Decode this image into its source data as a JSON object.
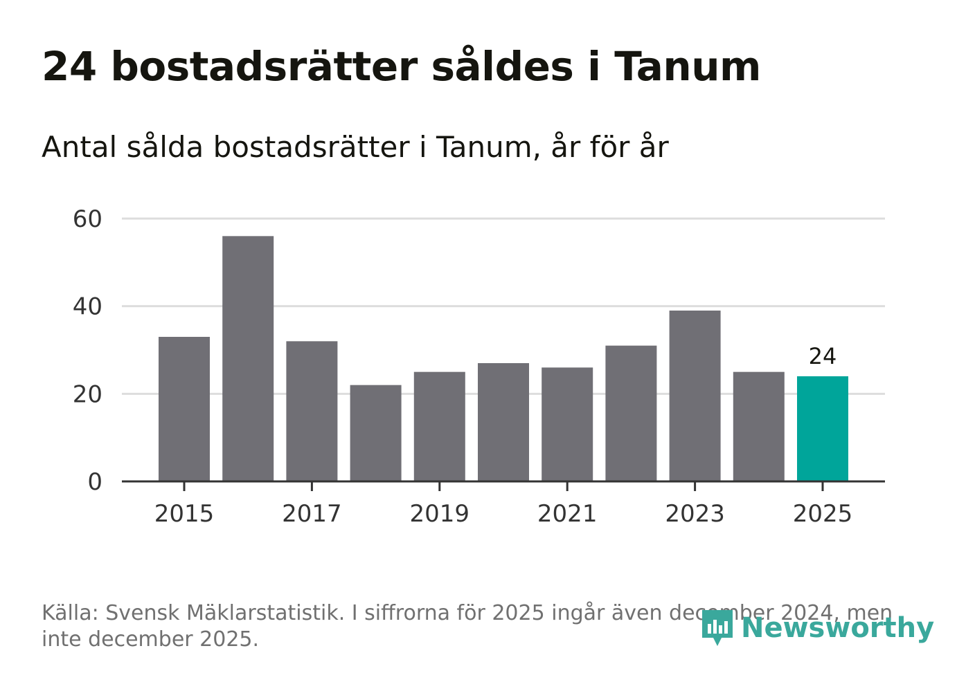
{
  "title": "24 bostadsrätter såldes i Tanum",
  "subtitle": "Antal sålda bostadsrätter i Tanum, år för år",
  "footnote": "Källa: Svensk Mäklarstatistik. I siffrorna för 2025 ingår även december 2024, men inte december 2025.",
  "logo": {
    "text": "Newsworthy",
    "icon": "newsworthy-logo-icon",
    "color": "#3aa89c"
  },
  "colors": {
    "bar": "#706f75",
    "highlight": "#00a59a",
    "grid": "#dddddd",
    "axis": "#333333",
    "tick_text": "#333333"
  },
  "chart_data": {
    "type": "bar",
    "title": "24 bostadsrätter såldes i Tanum",
    "subtitle": "Antal sålda bostadsrätter i Tanum, år för år",
    "xlabel": "",
    "ylabel": "",
    "categories": [
      "2015",
      "2016",
      "2017",
      "2018",
      "2019",
      "2020",
      "2021",
      "2022",
      "2023",
      "2024",
      "2025"
    ],
    "values": [
      33,
      56,
      32,
      22,
      25,
      27,
      26,
      31,
      39,
      25,
      24
    ],
    "highlight_index": 10,
    "data_labels": [
      {
        "index": 10,
        "text": "24"
      }
    ],
    "xticks": [
      "2015",
      "2017",
      "2019",
      "2021",
      "2023",
      "2025"
    ],
    "yticks": [
      0,
      20,
      40,
      60
    ],
    "ylim": [
      0,
      60
    ],
    "grid": true,
    "legend": "none"
  }
}
